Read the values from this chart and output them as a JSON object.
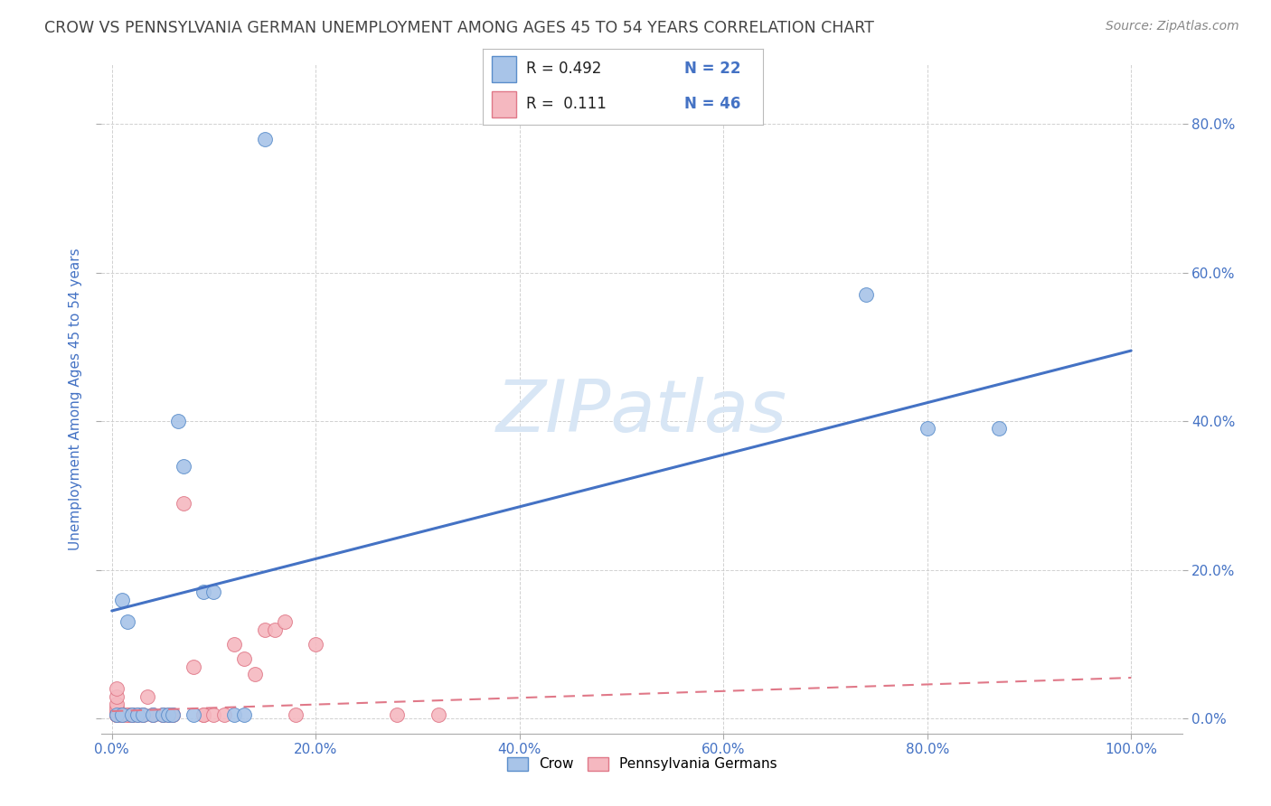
{
  "title": "CROW VS PENNSYLVANIA GERMAN UNEMPLOYMENT AMONG AGES 45 TO 54 YEARS CORRELATION CHART",
  "source": "Source: ZipAtlas.com",
  "ylabel": "Unemployment Among Ages 45 to 54 years",
  "xlim": [
    -0.01,
    1.05
  ],
  "ylim": [
    -0.02,
    0.88
  ],
  "xticks": [
    0.0,
    0.2,
    0.4,
    0.6,
    0.8,
    1.0
  ],
  "yticks": [
    0.0,
    0.2,
    0.4,
    0.6,
    0.8
  ],
  "xticklabels": [
    "0.0%",
    "20.0%",
    "40.0%",
    "60.0%",
    "80.0%",
    "100.0%"
  ],
  "yticklabels_left": [
    "",
    "",
    "",
    "",
    ""
  ],
  "yticklabels_right": [
    "0.0%",
    "20.0%",
    "40.0%",
    "60.0%",
    "80.0%"
  ],
  "crow_color": "#a8c4e8",
  "crow_edge_color": "#5b8ecb",
  "penn_color": "#f5b8c0",
  "penn_edge_color": "#e07888",
  "crow_line_color": "#4472c4",
  "penn_line_color": "#e07888",
  "legend_R1": "R = 0.492",
  "legend_N1": "N = 22",
  "legend_R2": "R =  0.111",
  "legend_N2": "N = 46",
  "watermark": "ZIPatlas",
  "crow_x": [
    0.005,
    0.01,
    0.01,
    0.015,
    0.02,
    0.025,
    0.03,
    0.04,
    0.05,
    0.055,
    0.06,
    0.065,
    0.07,
    0.08,
    0.09,
    0.1,
    0.12,
    0.13,
    0.15,
    0.74,
    0.8,
    0.87
  ],
  "crow_y": [
    0.005,
    0.16,
    0.005,
    0.13,
    0.005,
    0.005,
    0.005,
    0.005,
    0.005,
    0.005,
    0.005,
    0.4,
    0.34,
    0.005,
    0.17,
    0.17,
    0.005,
    0.005,
    0.78,
    0.57,
    0.39,
    0.39
  ],
  "penn_x": [
    0.005,
    0.005,
    0.005,
    0.005,
    0.005,
    0.005,
    0.005,
    0.005,
    0.005,
    0.005,
    0.01,
    0.01,
    0.01,
    0.01,
    0.015,
    0.015,
    0.02,
    0.02,
    0.02,
    0.025,
    0.03,
    0.03,
    0.035,
    0.04,
    0.04,
    0.05,
    0.05,
    0.055,
    0.06,
    0.06,
    0.07,
    0.08,
    0.09,
    0.09,
    0.1,
    0.11,
    0.12,
    0.13,
    0.14,
    0.15,
    0.16,
    0.17,
    0.18,
    0.2,
    0.28,
    0.32
  ],
  "penn_y": [
    0.005,
    0.005,
    0.005,
    0.005,
    0.005,
    0.01,
    0.015,
    0.02,
    0.03,
    0.04,
    0.005,
    0.005,
    0.005,
    0.005,
    0.005,
    0.005,
    0.005,
    0.005,
    0.005,
    0.005,
    0.005,
    0.005,
    0.03,
    0.005,
    0.005,
    0.005,
    0.005,
    0.005,
    0.005,
    0.005,
    0.29,
    0.07,
    0.005,
    0.005,
    0.005,
    0.005,
    0.1,
    0.08,
    0.06,
    0.12,
    0.12,
    0.13,
    0.005,
    0.1,
    0.005,
    0.005
  ],
  "crow_trend_x": [
    0.0,
    1.0
  ],
  "crow_trend_y": [
    0.145,
    0.495
  ],
  "penn_trend_x": [
    0.0,
    1.0
  ],
  "penn_trend_y": [
    0.01,
    0.055
  ],
  "bg_color": "#ffffff",
  "grid_color": "#cccccc",
  "title_color": "#444444",
  "axis_label_color": "#4472c4",
  "tick_color": "#4472c4",
  "watermark_color": "#d8e6f5",
  "figsize": [
    14.06,
    8.92
  ],
  "dpi": 100
}
